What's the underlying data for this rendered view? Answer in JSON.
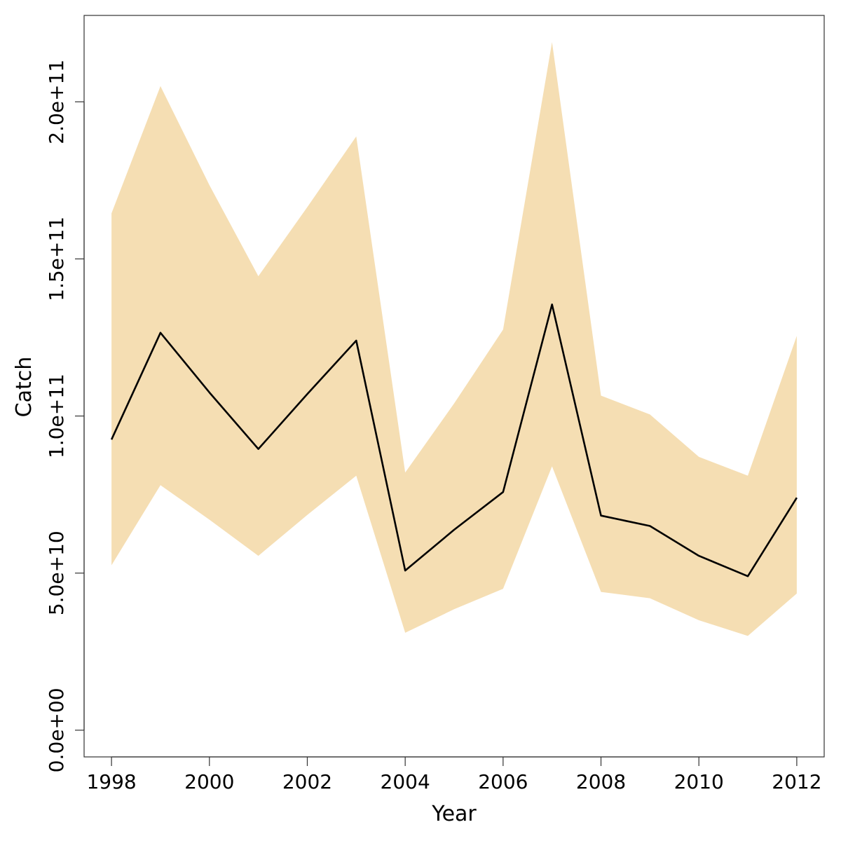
{
  "chart_data": {
    "type": "area",
    "xlabel": "Year",
    "ylabel": "Catch",
    "x": [
      1998,
      1999,
      2000,
      2001,
      2002,
      2003,
      2004,
      2005,
      2006,
      2007,
      2008,
      2009,
      2010,
      2011,
      2012
    ],
    "series": [
      {
        "role": "median",
        "color": "#000000",
        "values": [
          92500000000,
          126500000000,
          107500000000,
          89500000000,
          107000000000,
          124000000000,
          50800000000,
          63800000000,
          75800000000,
          135500000000,
          68300000000,
          65000000000,
          55500000000,
          49000000000,
          74000000000
        ]
      },
      {
        "role": "upper",
        "values": [
          164500000000,
          205000000000,
          173500000000,
          144500000000,
          166500000000,
          189000000000,
          82000000000,
          104000000000,
          127500000000,
          219000000000,
          106500000000,
          100500000000,
          87000000000,
          81000000000,
          125500000000
        ]
      },
      {
        "role": "lower",
        "values": [
          52500000000,
          78000000000,
          67000000000,
          55500000000,
          68500000000,
          81000000000,
          31000000000,
          38500000000,
          45000000000,
          84000000000,
          44000000000,
          42000000000,
          35000000000,
          30000000000,
          43500000000
        ]
      }
    ],
    "band_color": "#f5deb3",
    "xticks": [
      1998,
      2000,
      2002,
      2004,
      2006,
      2008,
      2010,
      2012
    ],
    "xtick_labels": [
      "1998",
      "2000",
      "2002",
      "2004",
      "2006",
      "2008",
      "2010",
      "2012"
    ],
    "yticks": [
      0,
      50000000000,
      100000000000,
      150000000000,
      200000000000
    ],
    "ytick_labels": [
      "0.0e+00",
      "5.0e+10",
      "1.0e+11",
      "1.5e+11",
      "2.0e+11"
    ],
    "xlim": [
      1997.44,
      2012.56
    ],
    "ylim": [
      -8500000000,
      227500000000
    ],
    "grid": false
  }
}
